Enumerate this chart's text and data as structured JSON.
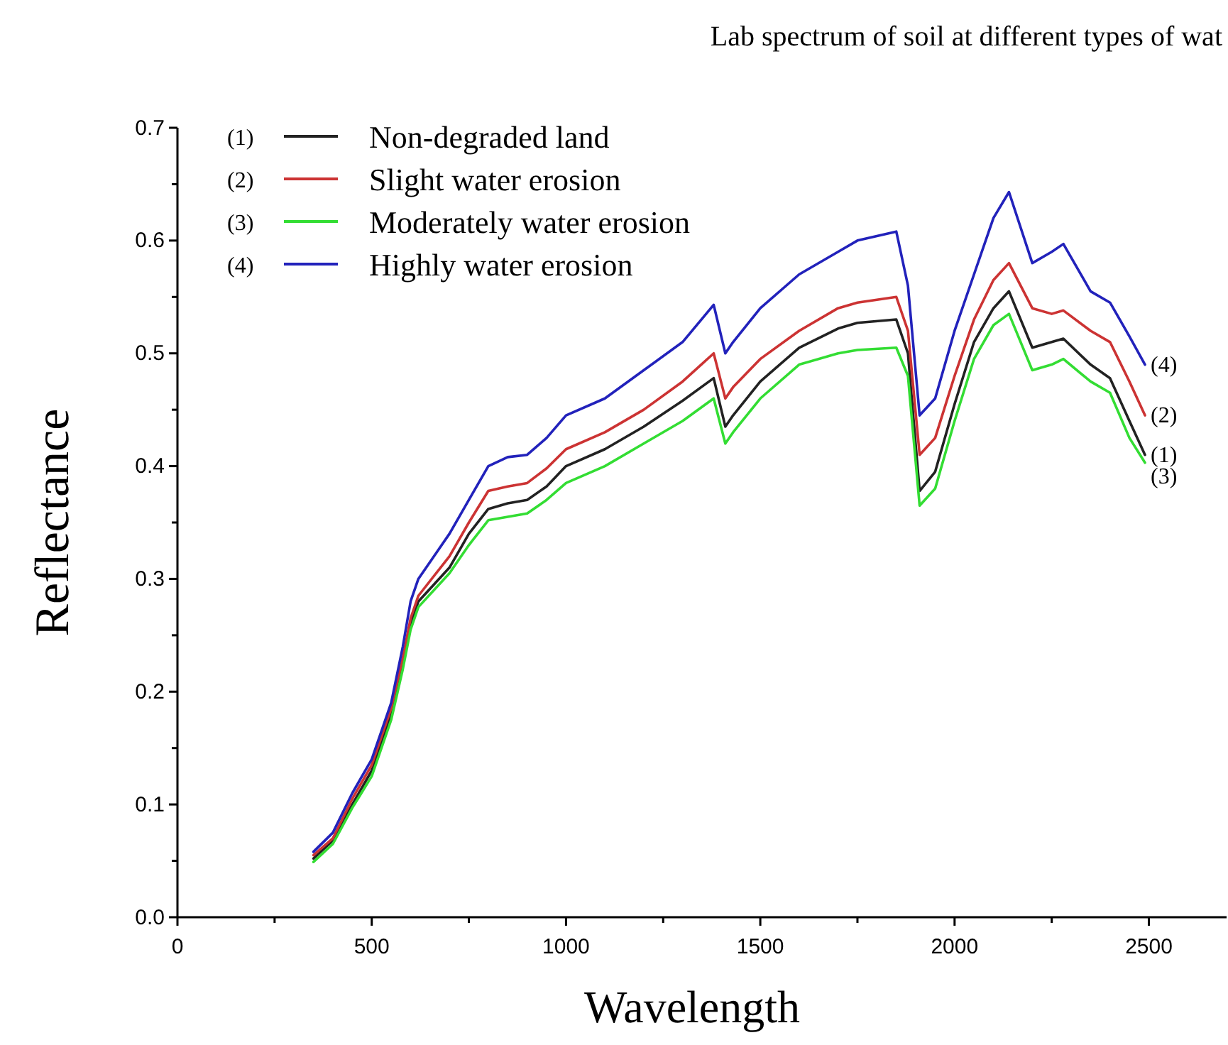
{
  "chart_data": {
    "type": "line",
    "title": "Lab spectrum of soil at different types of wat",
    "xlabel": "Wavelength",
    "ylabel": "Reflectance",
    "x": [
      350,
      400,
      450,
      500,
      550,
      580,
      600,
      620,
      700,
      750,
      800,
      850,
      900,
      950,
      1000,
      1100,
      1200,
      1300,
      1380,
      1410,
      1430,
      1500,
      1600,
      1700,
      1750,
      1850,
      1880,
      1910,
      1950,
      2000,
      2050,
      2100,
      2140,
      2200,
      2250,
      2280,
      2350,
      2400,
      2450,
      2490
    ],
    "series": [
      {
        "name": "Non-degraded land",
        "color": "#222222",
        "values": [
          0.052,
          0.068,
          0.1,
          0.13,
          0.18,
          0.225,
          0.26,
          0.28,
          0.31,
          0.34,
          0.362,
          0.367,
          0.37,
          0.382,
          0.4,
          0.415,
          0.435,
          0.458,
          0.478,
          0.435,
          0.445,
          0.475,
          0.505,
          0.522,
          0.527,
          0.53,
          0.5,
          0.378,
          0.395,
          0.455,
          0.51,
          0.54,
          0.555,
          0.505,
          0.51,
          0.513,
          0.49,
          0.478,
          0.44,
          0.41
        ]
      },
      {
        "name": "Slight water erosion",
        "color": "#cc3333",
        "values": [
          0.055,
          0.07,
          0.105,
          0.135,
          0.185,
          0.23,
          0.265,
          0.285,
          0.32,
          0.35,
          0.378,
          0.382,
          0.385,
          0.398,
          0.415,
          0.43,
          0.45,
          0.475,
          0.5,
          0.46,
          0.47,
          0.495,
          0.52,
          0.54,
          0.545,
          0.55,
          0.52,
          0.41,
          0.425,
          0.48,
          0.53,
          0.565,
          0.58,
          0.54,
          0.535,
          0.538,
          0.52,
          0.51,
          0.475,
          0.445
        ]
      },
      {
        "name": "Moderately water erosion",
        "color": "#33dd33",
        "values": [
          0.049,
          0.065,
          0.097,
          0.125,
          0.175,
          0.22,
          0.255,
          0.275,
          0.305,
          0.33,
          0.352,
          0.355,
          0.358,
          0.37,
          0.385,
          0.4,
          0.42,
          0.44,
          0.46,
          0.42,
          0.43,
          0.46,
          0.49,
          0.5,
          0.503,
          0.505,
          0.48,
          0.365,
          0.38,
          0.44,
          0.495,
          0.525,
          0.535,
          0.485,
          0.49,
          0.495,
          0.475,
          0.465,
          0.425,
          0.403
        ]
      },
      {
        "name": "Highly water erosion",
        "color": "#2222bb",
        "values": [
          0.058,
          0.075,
          0.11,
          0.14,
          0.19,
          0.24,
          0.28,
          0.3,
          0.34,
          0.37,
          0.4,
          0.408,
          0.41,
          0.425,
          0.445,
          0.46,
          0.485,
          0.51,
          0.543,
          0.5,
          0.51,
          0.54,
          0.57,
          0.59,
          0.6,
          0.608,
          0.56,
          0.445,
          0.46,
          0.52,
          0.57,
          0.62,
          0.643,
          0.58,
          0.59,
          0.597,
          0.555,
          0.545,
          0.515,
          0.49
        ]
      }
    ],
    "annotations": [
      "(1)",
      "(2)",
      "(3)",
      "(4)"
    ],
    "xlim": [
      0,
      2700
    ],
    "ylim": [
      0,
      0.7
    ],
    "xticks": [
      0,
      {
        "value": 250,
        "label": null
      },
      500,
      {
        "value": 750,
        "label": null
      },
      1000,
      {
        "value": 1250,
        "label": null
      },
      1500,
      {
        "value": 1750,
        "label": null
      },
      2000,
      {
        "value": 2250,
        "label": null
      },
      2500
    ],
    "yticks": [
      {
        "value": 0,
        "label": "0.0"
      },
      {
        "value": 0.05,
        "label": null
      },
      0.1,
      {
        "value": 0.15,
        "label": null
      },
      0.2,
      {
        "value": 0.25,
        "label": null
      },
      0.3,
      {
        "value": 0.35,
        "label": null
      },
      0.4,
      {
        "value": 0.45,
        "label": null
      },
      0.5,
      {
        "value": 0.55,
        "label": null
      },
      0.6,
      {
        "value": 0.65,
        "label": null
      },
      0.7
    ],
    "legend": "top left",
    "grid": false,
    "line_style": "solid",
    "marker": "none"
  }
}
